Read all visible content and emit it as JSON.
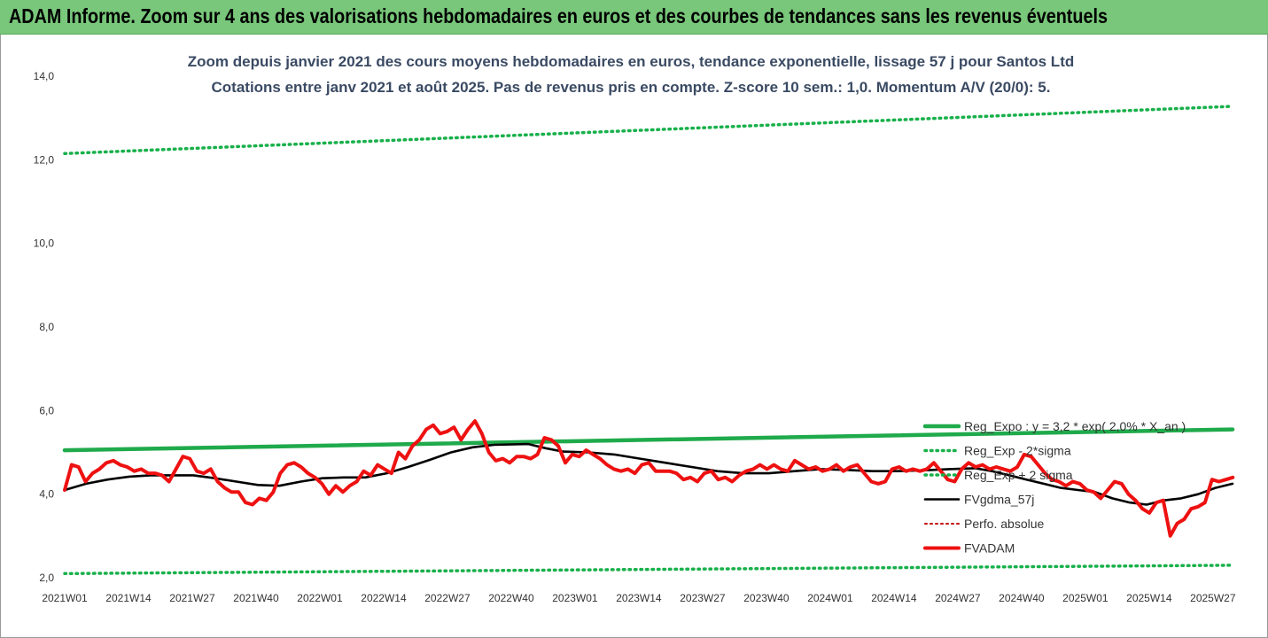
{
  "banner": {
    "title": "ADAM Informe. Zoom sur 4 ans des valorisations hebdomadaires en euros et des courbes de tendances sans les revenus éventuels"
  },
  "colors": {
    "banner": "#78c77a",
    "trend": "#1faa4b",
    "band": "#18b04a",
    "smooth": "#000000",
    "perf": "#c00000",
    "price": "#ee1111"
  },
  "chart_data": {
    "type": "line",
    "title": "Zoom depuis janvier 2021 des cours moyens hebdomadaires en euros, tendance exponentielle, lissage 57 j pour Santos Ltd",
    "subtitle": "Cotations entre janv 2021 et août 2025.  Pas de revenus pris en compte. Z-score 10 sem.: 1,0. Momentum A/V (20/0): 5.",
    "xlabel": "",
    "ylabel": "",
    "ylim": [
      2.0,
      14.0
    ],
    "y_ticks": [
      "2,0",
      "4,0",
      "6,0",
      "8,0",
      "10,0",
      "12,0",
      "14,0"
    ],
    "grid": false,
    "legend_position": "right",
    "x_tick_labels": [
      "2021W01",
      "2021W14",
      "2021W27",
      "2021W40",
      "2022W01",
      "2022W14",
      "2022W27",
      "2022W40",
      "2023W01",
      "2023W14",
      "2023W27",
      "2023W40",
      "2024W01",
      "2024W14",
      "2024W27",
      "2024W40",
      "2025W01",
      "2025W14",
      "2025W27"
    ],
    "n_weeks": 239,
    "series": [
      {
        "name": "Reg_Expo : y = 3,2 * exp( 2,0% *  X_an )",
        "style": "solid",
        "keypoints": [
          [
            0,
            5.05
          ],
          [
            238,
            5.55
          ]
        ]
      },
      {
        "name": "Reg_Exp - 2*sigma",
        "style": "dotted",
        "keypoints": [
          [
            0,
            2.1
          ],
          [
            238,
            2.3
          ]
        ]
      },
      {
        "name": "Reg_Exp + 2 sigma",
        "style": "dotted",
        "keypoints": [
          [
            0,
            12.15
          ],
          [
            238,
            13.28
          ]
        ]
      },
      {
        "name": "FVgdma_57j",
        "style": "solid",
        "keypoints": [
          [
            0,
            4.1
          ],
          [
            5,
            4.25
          ],
          [
            10,
            4.35
          ],
          [
            15,
            4.42
          ],
          [
            20,
            4.45
          ],
          [
            30,
            4.45
          ],
          [
            35,
            4.38
          ],
          [
            40,
            4.3
          ],
          [
            45,
            4.22
          ],
          [
            50,
            4.2
          ],
          [
            55,
            4.3
          ],
          [
            60,
            4.38
          ],
          [
            65,
            4.4
          ],
          [
            70,
            4.4
          ],
          [
            75,
            4.5
          ],
          [
            80,
            4.65
          ],
          [
            85,
            4.82
          ],
          [
            90,
            5.0
          ],
          [
            95,
            5.12
          ],
          [
            100,
            5.18
          ],
          [
            108,
            5.2
          ],
          [
            112,
            5.1
          ],
          [
            116,
            5.02
          ],
          [
            122,
            5.0
          ],
          [
            128,
            4.95
          ],
          [
            134,
            4.85
          ],
          [
            140,
            4.75
          ],
          [
            146,
            4.65
          ],
          [
            152,
            4.55
          ],
          [
            158,
            4.5
          ],
          [
            164,
            4.5
          ],
          [
            170,
            4.55
          ],
          [
            176,
            4.6
          ],
          [
            182,
            4.58
          ],
          [
            188,
            4.55
          ],
          [
            194,
            4.55
          ],
          [
            200,
            4.57
          ],
          [
            206,
            4.6
          ],
          [
            212,
            4.62
          ],
          [
            216,
            4.55
          ],
          [
            220,
            4.45
          ],
          [
            224,
            4.35
          ],
          [
            228,
            4.25
          ],
          [
            232,
            4.15
          ],
          [
            236,
            4.1
          ],
          [
            240,
            4.05
          ],
          [
            244,
            3.9
          ],
          [
            248,
            3.8
          ],
          [
            252,
            3.75
          ],
          [
            256,
            3.85
          ],
          [
            260,
            3.9
          ],
          [
            264,
            4.0
          ],
          [
            268,
            4.15
          ],
          [
            272,
            4.25
          ]
        ],
        "x_scale": 0.875
      },
      {
        "name": "Perfo. absolue",
        "style": "dotted",
        "keypoints": []
      },
      {
        "name": "FVADAM",
        "style": "solid",
        "keypoints": [
          [
            0,
            4.1
          ],
          [
            1,
            4.7
          ],
          [
            2,
            4.65
          ],
          [
            3,
            4.3
          ],
          [
            4,
            4.5
          ],
          [
            5,
            4.6
          ],
          [
            6,
            4.75
          ],
          [
            7,
            4.8
          ],
          [
            8,
            4.7
          ],
          [
            9,
            4.65
          ],
          [
            10,
            4.55
          ],
          [
            11,
            4.6
          ],
          [
            12,
            4.5
          ],
          [
            13,
            4.5
          ],
          [
            14,
            4.45
          ],
          [
            15,
            4.3
          ],
          [
            16,
            4.6
          ],
          [
            17,
            4.9
          ],
          [
            18,
            4.85
          ],
          [
            19,
            4.55
          ],
          [
            20,
            4.5
          ],
          [
            21,
            4.6
          ],
          [
            22,
            4.3
          ],
          [
            23,
            4.15
          ],
          [
            24,
            4.05
          ],
          [
            25,
            4.05
          ],
          [
            26,
            3.8
          ],
          [
            27,
            3.75
          ],
          [
            28,
            3.9
          ],
          [
            29,
            3.85
          ],
          [
            30,
            4.05
          ],
          [
            31,
            4.5
          ],
          [
            32,
            4.7
          ],
          [
            33,
            4.75
          ],
          [
            34,
            4.65
          ],
          [
            35,
            4.5
          ],
          [
            36,
            4.4
          ],
          [
            37,
            4.25
          ],
          [
            38,
            4.0
          ],
          [
            39,
            4.2
          ],
          [
            40,
            4.05
          ],
          [
            41,
            4.2
          ],
          [
            42,
            4.3
          ],
          [
            43,
            4.55
          ],
          [
            44,
            4.45
          ],
          [
            45,
            4.7
          ],
          [
            46,
            4.6
          ],
          [
            47,
            4.5
          ],
          [
            48,
            5.0
          ],
          [
            49,
            4.85
          ],
          [
            50,
            5.15
          ],
          [
            51,
            5.3
          ],
          [
            52,
            5.55
          ],
          [
            53,
            5.65
          ],
          [
            54,
            5.45
          ],
          [
            55,
            5.5
          ],
          [
            56,
            5.6
          ],
          [
            57,
            5.3
          ],
          [
            58,
            5.55
          ],
          [
            59,
            5.75
          ],
          [
            60,
            5.45
          ],
          [
            61,
            5.0
          ],
          [
            62,
            4.8
          ],
          [
            63,
            4.85
          ],
          [
            64,
            4.75
          ],
          [
            65,
            4.9
          ],
          [
            66,
            4.9
          ],
          [
            67,
            4.85
          ],
          [
            68,
            4.95
          ],
          [
            69,
            5.35
          ],
          [
            70,
            5.3
          ],
          [
            71,
            5.15
          ],
          [
            72,
            4.75
          ],
          [
            73,
            4.95
          ],
          [
            74,
            4.9
          ],
          [
            75,
            5.05
          ],
          [
            76,
            4.95
          ],
          [
            77,
            4.85
          ],
          [
            78,
            4.7
          ],
          [
            79,
            4.6
          ],
          [
            80,
            4.55
          ],
          [
            81,
            4.6
          ],
          [
            82,
            4.5
          ],
          [
            83,
            4.7
          ],
          [
            84,
            4.75
          ],
          [
            85,
            4.55
          ],
          [
            86,
            4.55
          ],
          [
            87,
            4.55
          ],
          [
            88,
            4.5
          ],
          [
            89,
            4.35
          ],
          [
            90,
            4.4
          ],
          [
            91,
            4.3
          ],
          [
            92,
            4.5
          ],
          [
            93,
            4.55
          ],
          [
            94,
            4.35
          ],
          [
            95,
            4.4
          ],
          [
            96,
            4.3
          ],
          [
            97,
            4.45
          ],
          [
            98,
            4.55
          ],
          [
            99,
            4.6
          ],
          [
            100,
            4.7
          ],
          [
            101,
            4.6
          ],
          [
            102,
            4.7
          ],
          [
            103,
            4.6
          ],
          [
            104,
            4.55
          ],
          [
            105,
            4.8
          ],
          [
            106,
            4.7
          ],
          [
            107,
            4.6
          ],
          [
            108,
            4.65
          ],
          [
            109,
            4.55
          ],
          [
            110,
            4.6
          ],
          [
            111,
            4.7
          ],
          [
            112,
            4.55
          ],
          [
            113,
            4.65
          ],
          [
            114,
            4.7
          ],
          [
            115,
            4.5
          ],
          [
            116,
            4.3
          ],
          [
            117,
            4.25
          ],
          [
            118,
            4.3
          ],
          [
            119,
            4.6
          ],
          [
            120,
            4.65
          ],
          [
            121,
            4.55
          ],
          [
            122,
            4.6
          ],
          [
            123,
            4.55
          ],
          [
            124,
            4.6
          ],
          [
            125,
            4.75
          ],
          [
            126,
            4.55
          ],
          [
            127,
            4.35
          ],
          [
            128,
            4.3
          ],
          [
            129,
            4.6
          ],
          [
            130,
            4.75
          ],
          [
            131,
            4.65
          ],
          [
            132,
            4.7
          ],
          [
            133,
            4.6
          ],
          [
            134,
            4.65
          ],
          [
            135,
            4.6
          ],
          [
            136,
            4.55
          ],
          [
            137,
            4.65
          ],
          [
            138,
            4.95
          ],
          [
            139,
            4.9
          ],
          [
            140,
            4.7
          ],
          [
            141,
            4.5
          ],
          [
            142,
            4.35
          ],
          [
            143,
            4.3
          ],
          [
            144,
            4.2
          ],
          [
            145,
            4.3
          ],
          [
            146,
            4.25
          ],
          [
            147,
            4.1
          ],
          [
            148,
            4.05
          ],
          [
            149,
            3.9
          ],
          [
            150,
            4.1
          ],
          [
            151,
            4.3
          ],
          [
            152,
            4.25
          ],
          [
            153,
            4.0
          ],
          [
            154,
            3.85
          ],
          [
            155,
            3.65
          ],
          [
            156,
            3.55
          ],
          [
            157,
            3.8
          ],
          [
            158,
            3.85
          ],
          [
            159,
            3.0
          ],
          [
            160,
            3.3
          ],
          [
            161,
            3.4
          ],
          [
            162,
            3.65
          ],
          [
            163,
            3.7
          ],
          [
            164,
            3.8
          ],
          [
            165,
            4.35
          ],
          [
            166,
            4.3
          ],
          [
            167,
            4.35
          ],
          [
            168,
            4.4
          ]
        ],
        "x_scale": 1.417
      }
    ]
  },
  "legend": [
    {
      "label": "Reg_Expo : y = 3,2 * exp( 2,0% *  X_an )",
      "style": "solid",
      "color": "#1faa4b"
    },
    {
      "label": "Reg_Exp - 2*sigma",
      "style": "dotted",
      "color": "#18b04a"
    },
    {
      "label": "Reg_Exp + 2 sigma",
      "style": "dotted",
      "color": "#18b04a"
    },
    {
      "label": "FVgdma_57j",
      "style": "solid",
      "color": "#000000"
    },
    {
      "label": "Perfo. absolue",
      "style": "dotted",
      "color": "#c00000"
    },
    {
      "label": "FVADAM",
      "style": "solid",
      "color": "#ee1111"
    }
  ]
}
